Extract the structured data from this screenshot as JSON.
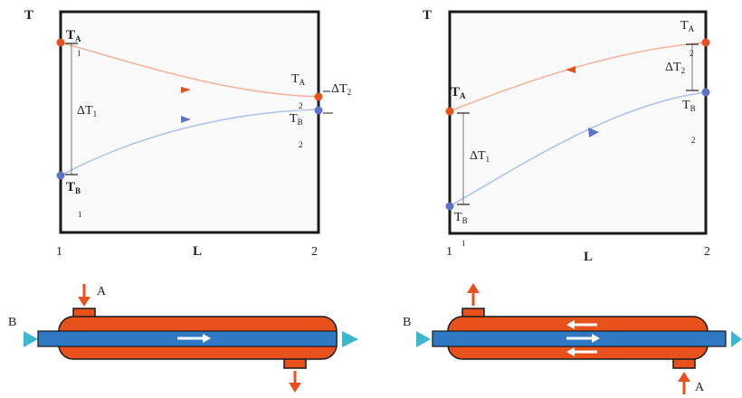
{
  "colors": {
    "hot": "#e8511c",
    "cold": "#5b73c9",
    "hot_curve": "#f7b39a",
    "cold_curve": "#aec3ef",
    "shell": "#e8511c",
    "tube": "#2f79c4",
    "inlet_arrow": "#3bb7d0",
    "frame": "#1a1a1a",
    "plot_bg": "#fafafa"
  },
  "parallel": {
    "axis_t": "T",
    "axis_l": "L",
    "tick_start": "1",
    "tick_end": "2",
    "ta": "T",
    "ta_sub": "A",
    "ta_idx1": "1",
    "ta_idx2": "2",
    "tb": "T",
    "tb_sub": "B",
    "tb_idx1": "1",
    "tb_idx2": "2",
    "dt": "ΔT",
    "dt1_sub": "1",
    "dt2_sub": "2",
    "exchanger": {
      "label_a": "A",
      "label_b": "B"
    }
  },
  "counter": {
    "axis_t": "T",
    "axis_l": "L",
    "tick_start": "1",
    "tick_start2": "1",
    "tick_end": "2",
    "ta": "T",
    "ta_sub": "A",
    "ta_idx2": "2",
    "tb": "T",
    "tb_sub": "B",
    "tb_idx2": "2",
    "dt": "ΔT",
    "dt1_sub": "1",
    "dt2_sub": "2",
    "exchanger": {
      "label_a": "A",
      "label_b": "B"
    }
  }
}
